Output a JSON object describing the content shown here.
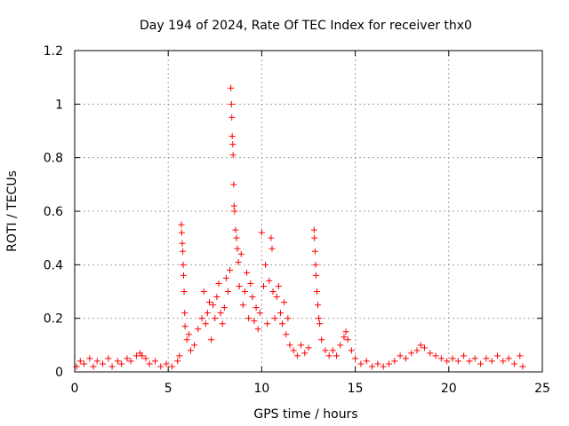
{
  "chart_data": {
    "type": "scatter",
    "title": "Day 194 of 2024, Rate Of TEC Index for receiver thx0",
    "xlabel": "GPS time / hours",
    "ylabel": "ROTI / TECUs",
    "xlim": [
      0,
      25
    ],
    "ylim": [
      0,
      1.2
    ],
    "x_ticks": [
      "0",
      "5",
      "10",
      "15",
      "20",
      "25"
    ],
    "y_ticks": [
      "0",
      "0.2",
      "0.4",
      "0.6",
      "0.8",
      "1",
      "1.2"
    ],
    "x_tick_values": [
      0,
      5,
      10,
      15,
      20,
      25
    ],
    "y_tick_values": [
      0,
      0.2,
      0.4,
      0.6,
      0.8,
      1.0,
      1.2
    ],
    "grid": true,
    "marker": "+",
    "marker_color": "#ff0000",
    "series": [
      {
        "points": [
          [
            0.1,
            0.02
          ],
          [
            0.3,
            0.04
          ],
          [
            0.5,
            0.03
          ],
          [
            0.8,
            0.05
          ],
          [
            1.0,
            0.02
          ],
          [
            1.2,
            0.04
          ],
          [
            1.5,
            0.03
          ],
          [
            1.8,
            0.05
          ],
          [
            2.0,
            0.02
          ],
          [
            2.3,
            0.04
          ],
          [
            2.5,
            0.03
          ],
          [
            2.8,
            0.05
          ],
          [
            3.0,
            0.04
          ],
          [
            3.3,
            0.06
          ],
          [
            3.5,
            0.07
          ],
          [
            3.6,
            0.06
          ],
          [
            3.8,
            0.05
          ],
          [
            4.0,
            0.03
          ],
          [
            4.3,
            0.04
          ],
          [
            4.6,
            0.02
          ],
          [
            4.9,
            0.03
          ],
          [
            5.2,
            0.02
          ],
          [
            5.5,
            0.04
          ],
          [
            5.6,
            0.06
          ],
          [
            5.7,
            0.55
          ],
          [
            5.72,
            0.52
          ],
          [
            5.75,
            0.48
          ],
          [
            5.78,
            0.45
          ],
          [
            5.8,
            0.4
          ],
          [
            5.82,
            0.36
          ],
          [
            5.85,
            0.3
          ],
          [
            5.88,
            0.22
          ],
          [
            5.9,
            0.17
          ],
          [
            6.0,
            0.12
          ],
          [
            6.1,
            0.14
          ],
          [
            6.2,
            0.08
          ],
          [
            6.4,
            0.1
          ],
          [
            6.6,
            0.16
          ],
          [
            6.8,
            0.2
          ],
          [
            6.9,
            0.3
          ],
          [
            7.0,
            0.18
          ],
          [
            7.1,
            0.22
          ],
          [
            7.2,
            0.26
          ],
          [
            7.3,
            0.12
          ],
          [
            7.4,
            0.25
          ],
          [
            7.5,
            0.2
          ],
          [
            7.6,
            0.28
          ],
          [
            7.7,
            0.33
          ],
          [
            7.8,
            0.22
          ],
          [
            7.9,
            0.18
          ],
          [
            8.0,
            0.24
          ],
          [
            8.1,
            0.35
          ],
          [
            8.2,
            0.3
          ],
          [
            8.3,
            0.38
          ],
          [
            8.35,
            1.06
          ],
          [
            8.38,
            1.0
          ],
          [
            8.4,
            0.95
          ],
          [
            8.42,
            0.88
          ],
          [
            8.45,
            0.85
          ],
          [
            8.47,
            0.81
          ],
          [
            8.5,
            0.7
          ],
          [
            8.52,
            0.62
          ],
          [
            8.55,
            0.6
          ],
          [
            8.6,
            0.53
          ],
          [
            8.65,
            0.5
          ],
          [
            8.7,
            0.46
          ],
          [
            8.75,
            0.41
          ],
          [
            8.8,
            0.32
          ],
          [
            8.9,
            0.44
          ],
          [
            9.0,
            0.25
          ],
          [
            9.1,
            0.3
          ],
          [
            9.2,
            0.37
          ],
          [
            9.3,
            0.2
          ],
          [
            9.4,
            0.33
          ],
          [
            9.5,
            0.28
          ],
          [
            9.6,
            0.19
          ],
          [
            9.7,
            0.24
          ],
          [
            9.8,
            0.16
          ],
          [
            9.9,
            0.22
          ],
          [
            10.0,
            0.52
          ],
          [
            10.1,
            0.32
          ],
          [
            10.2,
            0.4
          ],
          [
            10.3,
            0.18
          ],
          [
            10.4,
            0.34
          ],
          [
            10.5,
            0.5
          ],
          [
            10.55,
            0.46
          ],
          [
            10.6,
            0.3
          ],
          [
            10.7,
            0.2
          ],
          [
            10.8,
            0.28
          ],
          [
            10.9,
            0.32
          ],
          [
            11.0,
            0.22
          ],
          [
            11.1,
            0.18
          ],
          [
            11.2,
            0.26
          ],
          [
            11.3,
            0.14
          ],
          [
            11.4,
            0.2
          ],
          [
            11.5,
            0.1
          ],
          [
            11.7,
            0.08
          ],
          [
            11.9,
            0.06
          ],
          [
            12.1,
            0.1
          ],
          [
            12.3,
            0.07
          ],
          [
            12.5,
            0.09
          ],
          [
            12.8,
            0.53
          ],
          [
            12.82,
            0.5
          ],
          [
            12.85,
            0.45
          ],
          [
            12.88,
            0.4
          ],
          [
            12.9,
            0.36
          ],
          [
            12.95,
            0.3
          ],
          [
            13.0,
            0.25
          ],
          [
            13.05,
            0.2
          ],
          [
            13.1,
            0.18
          ],
          [
            13.2,
            0.12
          ],
          [
            13.4,
            0.08
          ],
          [
            13.6,
            0.06
          ],
          [
            13.8,
            0.08
          ],
          [
            14.0,
            0.06
          ],
          [
            14.2,
            0.1
          ],
          [
            14.4,
            0.13
          ],
          [
            14.5,
            0.15
          ],
          [
            14.6,
            0.12
          ],
          [
            14.8,
            0.08
          ],
          [
            15.0,
            0.05
          ],
          [
            15.3,
            0.03
          ],
          [
            15.6,
            0.04
          ],
          [
            15.9,
            0.02
          ],
          [
            16.2,
            0.03
          ],
          [
            16.5,
            0.02
          ],
          [
            16.8,
            0.03
          ],
          [
            17.1,
            0.04
          ],
          [
            17.4,
            0.06
          ],
          [
            17.7,
            0.05
          ],
          [
            18.0,
            0.07
          ],
          [
            18.3,
            0.08
          ],
          [
            18.5,
            0.1
          ],
          [
            18.7,
            0.09
          ],
          [
            19.0,
            0.07
          ],
          [
            19.3,
            0.06
          ],
          [
            19.6,
            0.05
          ],
          [
            19.9,
            0.04
          ],
          [
            20.2,
            0.05
          ],
          [
            20.5,
            0.04
          ],
          [
            20.8,
            0.06
          ],
          [
            21.1,
            0.04
          ],
          [
            21.4,
            0.05
          ],
          [
            21.7,
            0.03
          ],
          [
            22.0,
            0.05
          ],
          [
            22.3,
            0.04
          ],
          [
            22.6,
            0.06
          ],
          [
            22.9,
            0.04
          ],
          [
            23.2,
            0.05
          ],
          [
            23.5,
            0.03
          ],
          [
            23.8,
            0.06
          ],
          [
            23.95,
            0.02
          ]
        ]
      }
    ]
  }
}
